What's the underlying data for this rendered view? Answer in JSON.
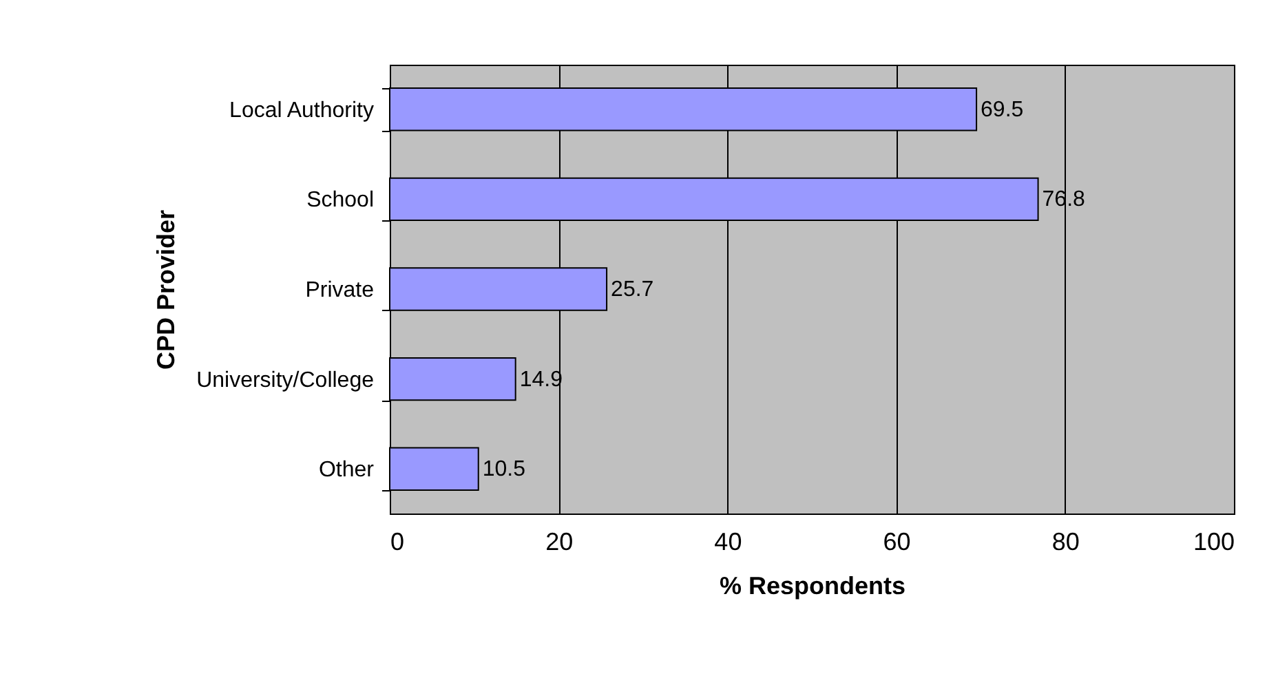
{
  "chart_data": {
    "type": "bar",
    "orientation": "horizontal",
    "xlabel": "% Respondents",
    "ylabel": "CPD Provider",
    "categories": [
      "Local Authority",
      "School",
      "Private",
      "University/College",
      "Other"
    ],
    "values": [
      69.5,
      76.8,
      25.7,
      14.9,
      10.5
    ],
    "color": "#9999ff",
    "xlim": [
      0,
      100
    ],
    "xticks": [
      0,
      20,
      40,
      60,
      80,
      100
    ],
    "grid": "x",
    "data_labels": true
  }
}
